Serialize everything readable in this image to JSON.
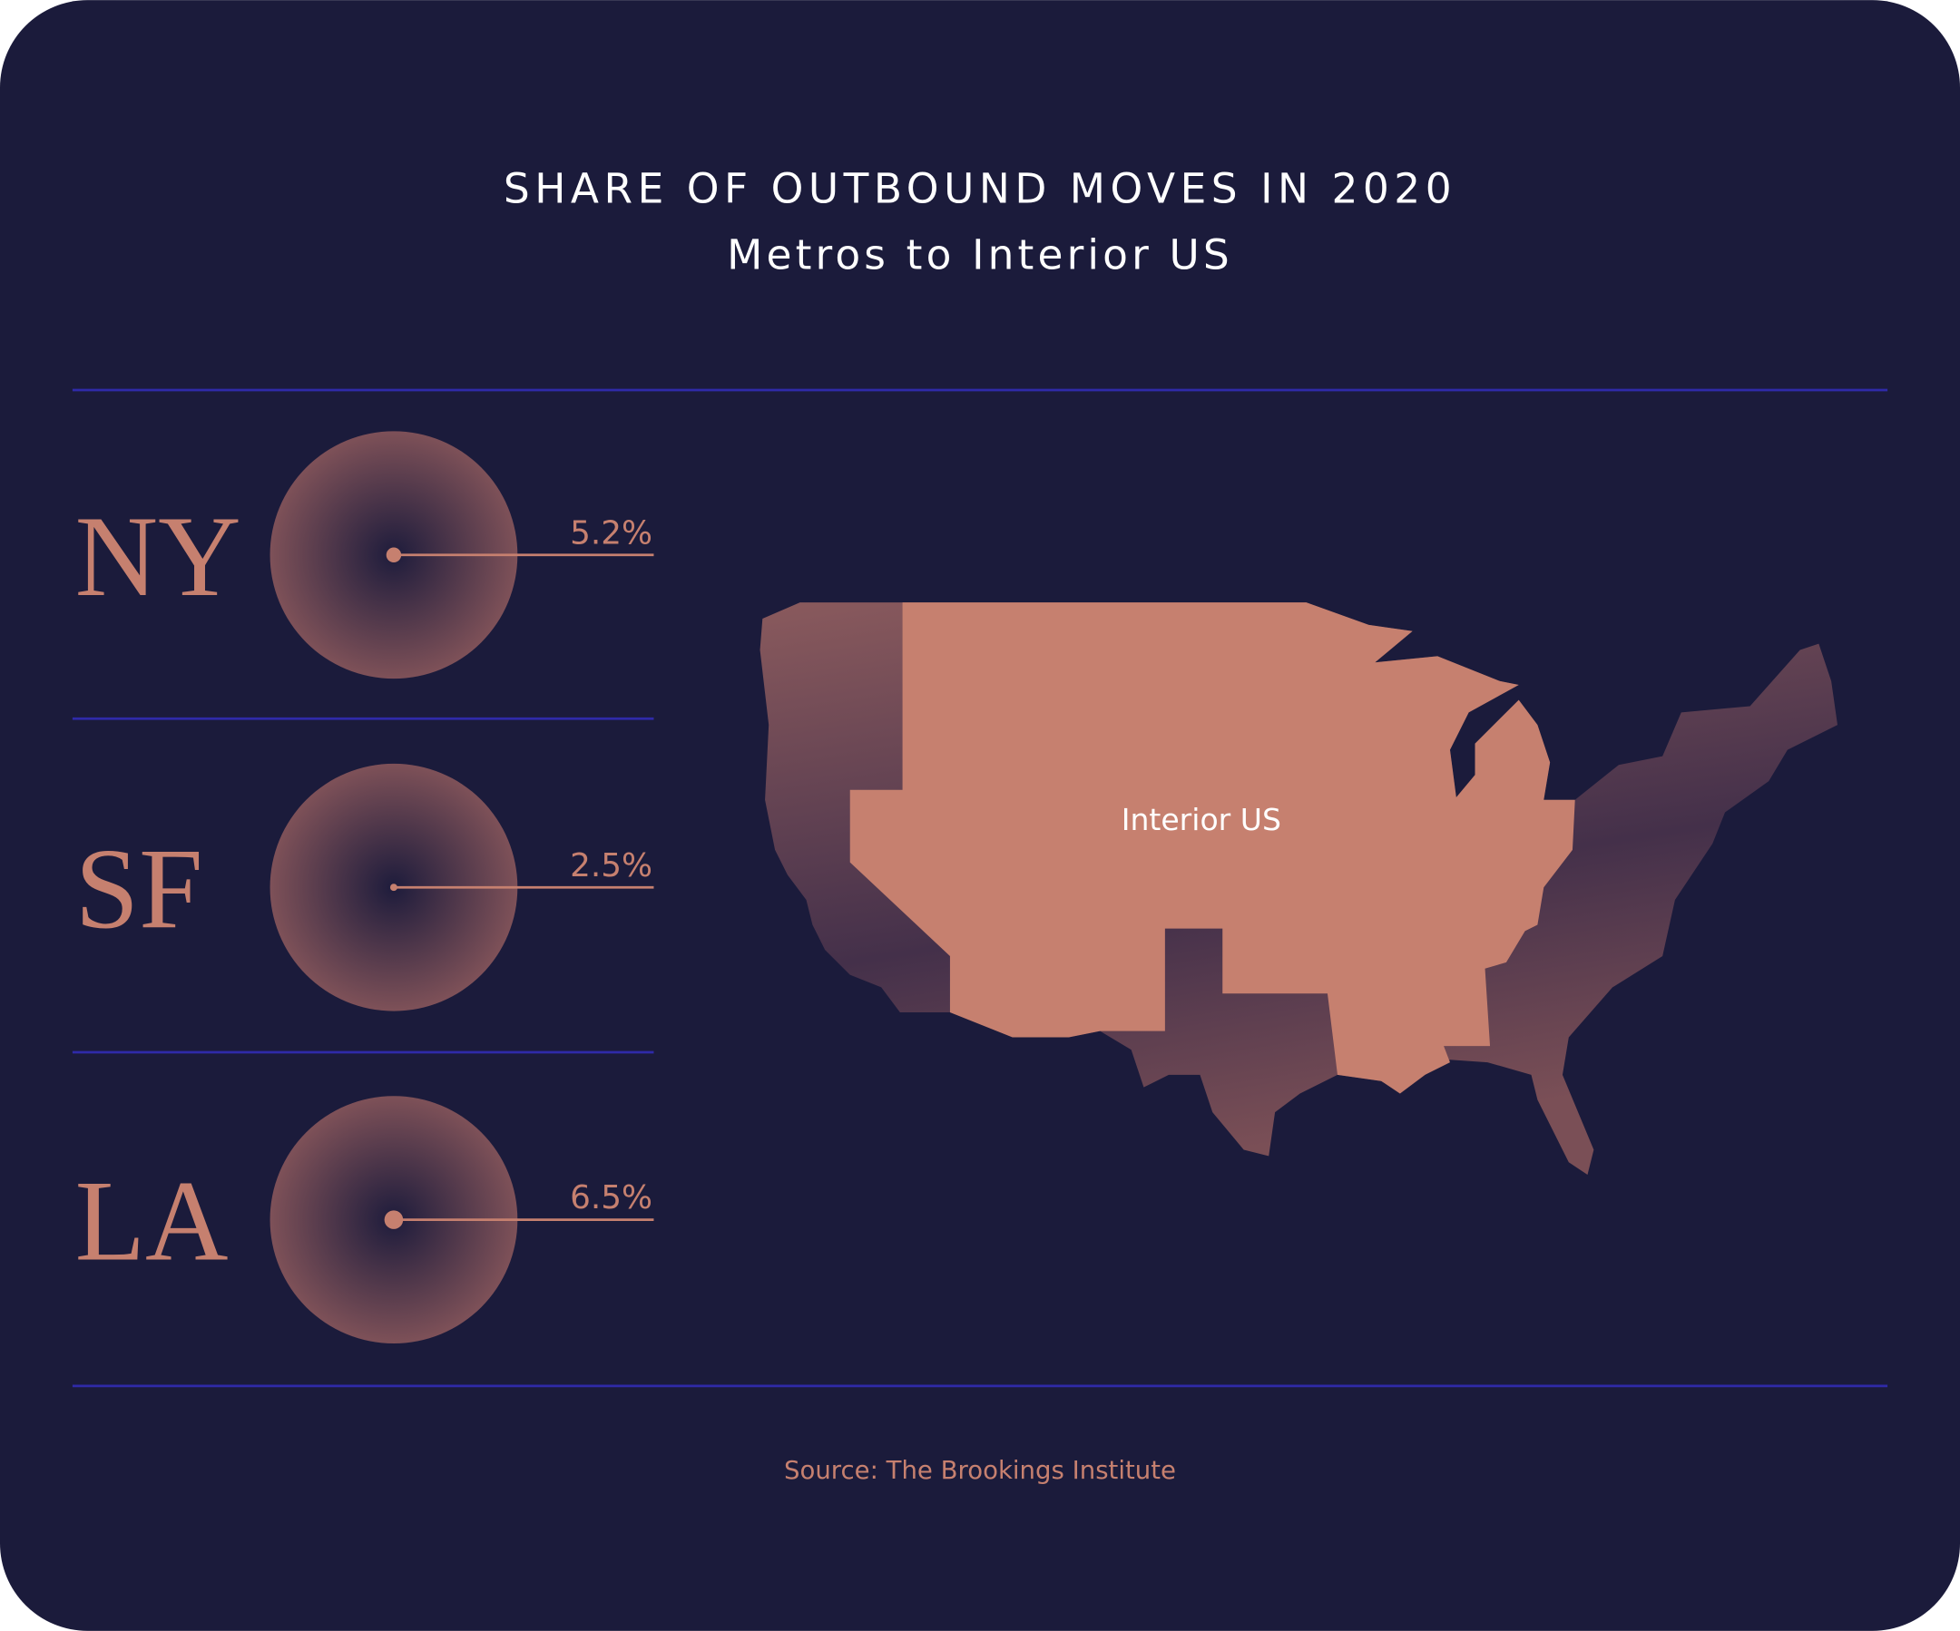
{
  "chart_data": {
    "type": "dot",
    "title": "SHARE OF OUTBOUND MOVES IN 2020",
    "subtitle": "Metros to Interior US",
    "categories": [
      "NY",
      "SF",
      "LA"
    ],
    "values": [
      5.2,
      2.5,
      6.5
    ],
    "value_labels": [
      "5.2%",
      "2.5%",
      "6.5%"
    ],
    "color": "#c6806f",
    "annotation": "Interior US",
    "source": "Source: The Brookings Institute"
  }
}
